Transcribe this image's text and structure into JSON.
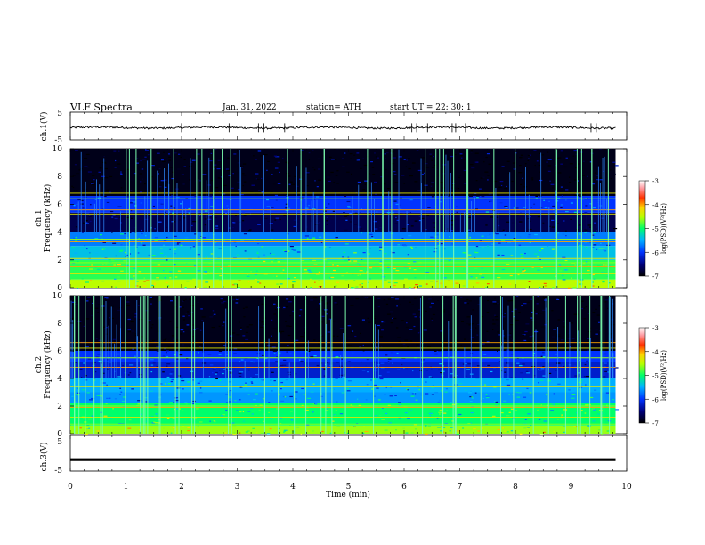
{
  "header": {
    "title": "VLF  Spectra",
    "date": "Jan.  31,  2022",
    "station": "station= ATH",
    "start_ut": "start  UT  =    22: 30: 1"
  },
  "chart_data": [
    {
      "type": "line",
      "panel": "ch1-waveform",
      "ylabel": "ch.1(V)",
      "yticklabels": [
        "5",
        "-5"
      ],
      "ylim": [
        -5,
        5
      ],
      "xlim": [
        0,
        10
      ],
      "data_extent_min": 9.8,
      "y_mean": -0.6,
      "y_noise": 0.35,
      "color": "#000000"
    },
    {
      "type": "heatmap",
      "panel": "ch1-spectrogram",
      "ylabel": "ch.1\nFrequency (kHz)",
      "yticks": [
        0,
        2,
        4,
        6,
        8,
        10
      ],
      "ylim": [
        0,
        10
      ],
      "xlim": [
        0,
        10
      ],
      "data_extent_min": 9.8,
      "colorbar": {
        "label": "log(PSD)(V²/Hz)",
        "ticks": [
          -7,
          -6,
          -5,
          -4,
          -3
        ]
      },
      "bands": [
        {
          "f": [
            0.0,
            0.6
          ],
          "level": -4.5
        },
        {
          "f": [
            0.6,
            2.0
          ],
          "level": -4.9
        },
        {
          "f": [
            2.0,
            3.0
          ],
          "level": -5.4
        },
        {
          "f": [
            3.0,
            4.0
          ],
          "level": -5.7
        },
        {
          "f": [
            4.0,
            5.4
          ],
          "level": -6.7
        },
        {
          "f": [
            5.4,
            6.6
          ],
          "level": -6.0
        },
        {
          "f": [
            6.6,
            10.0
          ],
          "level": -6.9
        }
      ],
      "tones_khz": [
        0.5,
        1.0,
        1.5,
        1.8,
        2.1,
        3.3,
        3.5,
        5.3,
        5.6,
        6.4,
        6.8
      ],
      "sferic_rate_per_min": 10
    },
    {
      "type": "heatmap",
      "panel": "ch2-spectrogram",
      "ylabel": "ch.2\nFrequency (kHz)",
      "yticks": [
        0,
        2,
        4,
        6,
        8,
        10
      ],
      "ylim": [
        0,
        10
      ],
      "xlim": [
        0,
        10
      ],
      "data_extent_min": 9.8,
      "colorbar": {
        "label": "log(PSD)(V²/Hz)",
        "ticks": [
          -7,
          -6,
          -5,
          -4,
          -3
        ]
      },
      "bands": [
        {
          "f": [
            0.0,
            0.6
          ],
          "level": -4.6
        },
        {
          "f": [
            0.6,
            2.2
          ],
          "level": -5.0
        },
        {
          "f": [
            2.2,
            3.0
          ],
          "level": -5.6
        },
        {
          "f": [
            3.0,
            4.0
          ],
          "level": -5.5
        },
        {
          "f": [
            4.0,
            5.2
          ],
          "level": -6.2
        },
        {
          "f": [
            5.2,
            6.0
          ],
          "level": -6.0
        },
        {
          "f": [
            6.0,
            10.0
          ],
          "level": -6.9
        }
      ],
      "tones_khz": [
        0.7,
        1.2,
        1.9,
        2.0,
        3.4,
        4.8,
        5.5,
        6.2,
        6.6
      ],
      "sferic_rate_per_min": 10
    },
    {
      "type": "line",
      "panel": "ch3-waveform",
      "ylabel": "ch.3(V)",
      "yticklabels": [
        "5",
        "-5"
      ],
      "ylim": [
        -5,
        5
      ],
      "xlim": [
        0,
        10
      ],
      "data_extent_min": 9.8,
      "y_mean": -1.8,
      "y_noise": 0.0,
      "color": "#000000",
      "xlabel": "Time  (min)",
      "xticks": [
        0,
        1,
        2,
        3,
        4,
        5,
        6,
        7,
        8,
        9,
        10
      ]
    }
  ]
}
